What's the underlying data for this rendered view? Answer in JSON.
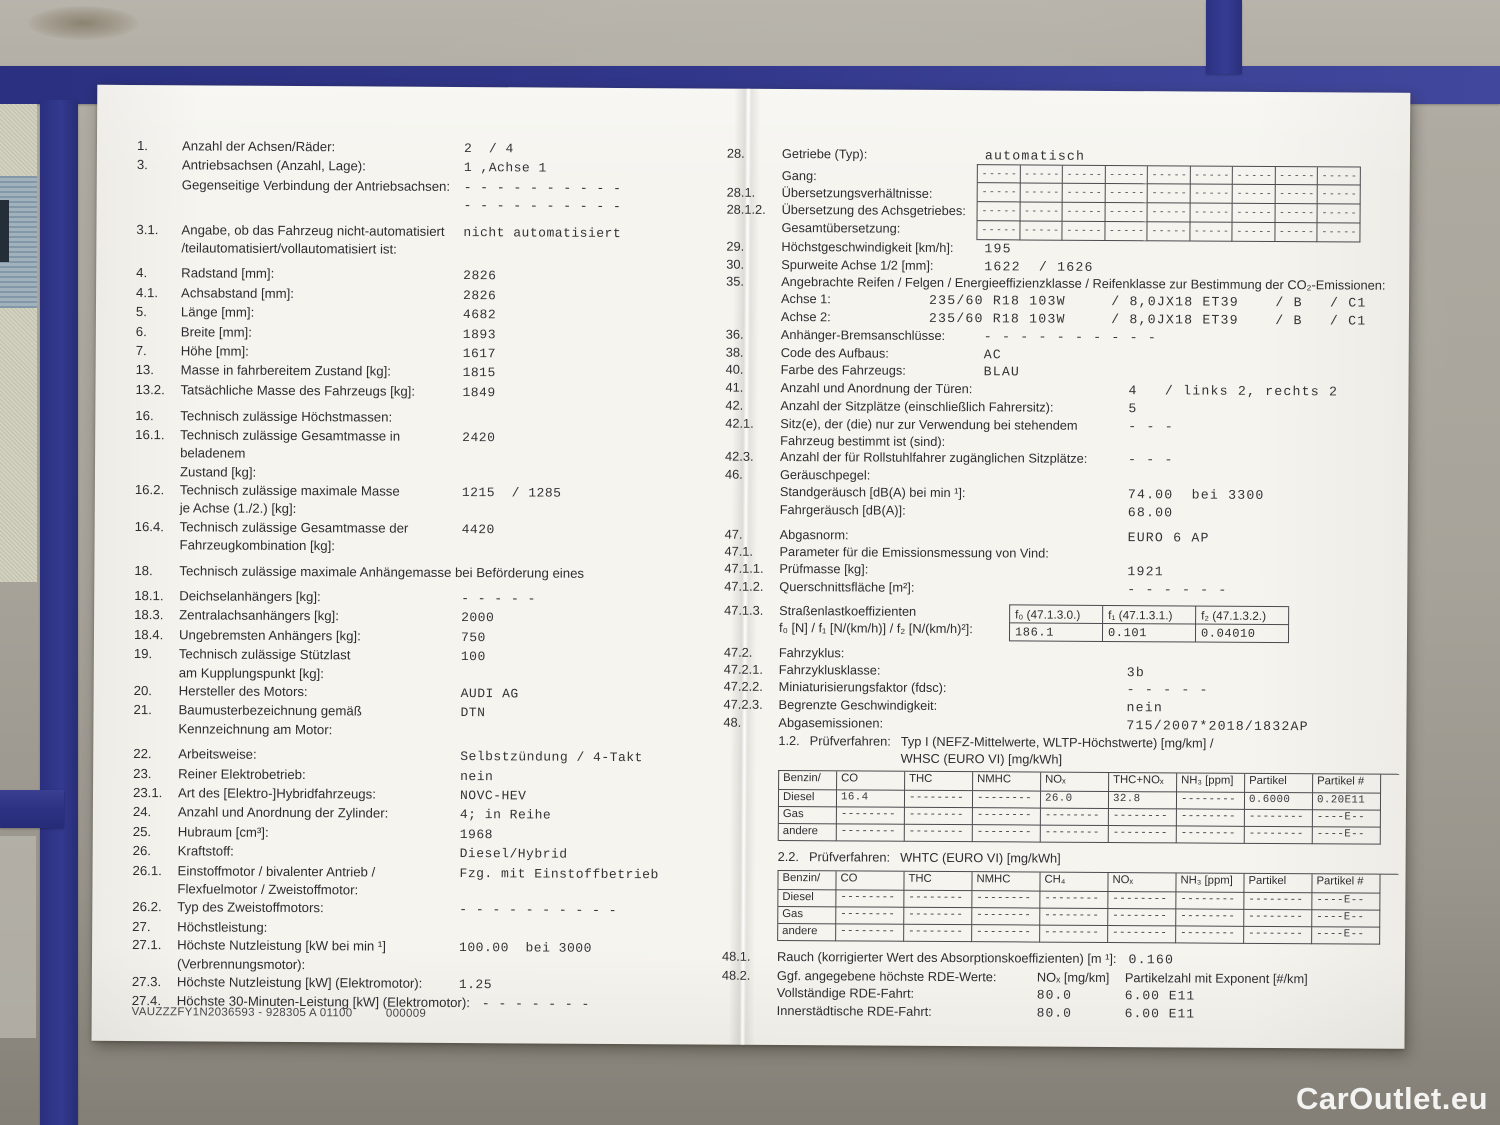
{
  "scene": {
    "watermark": "CarOutlet.eu",
    "colors": {
      "tape_blue": "#31368a",
      "paper": "#f5f4ef",
      "surface": "#a7a39a"
    }
  },
  "left_page": {
    "rows": [
      {
        "num": "1.",
        "label": "Anzahl der Achsen/Räder:",
        "value": "2  / 4"
      },
      {
        "num": "3.",
        "label": "Antriebsachsen (Anzahl, Lage):",
        "value": "1 ,Achse 1"
      },
      {
        "num": "",
        "label": "Gegenseitige Verbindung der Antriebsachsen:",
        "value": "- - - - - - - - - -\n- - - - - - - - - -"
      },
      {
        "num": "3.1.",
        "label": "Angabe, ob das Fahrzeug nicht-automatisiert\n/teilautomatisiert/vollautomatisiert ist:",
        "value": "nicht automatisiert",
        "cls": "gap"
      },
      {
        "num": "4.",
        "label": "Radstand [mm]:",
        "value": "2826",
        "cls": "gap"
      },
      {
        "num": "4.1.",
        "label": "Achsabstand [mm]:",
        "value": "2826"
      },
      {
        "num": "5.",
        "label": "Länge [mm]:",
        "value": "4682"
      },
      {
        "num": "6.",
        "label": "Breite [mm]:",
        "value": "1893"
      },
      {
        "num": "7.",
        "label": "Höhe [mm]:",
        "value": "1617"
      },
      {
        "num": "13.",
        "label": "Masse in fahrbereitem Zustand [kg]:",
        "value": "1815"
      },
      {
        "num": "13.2.",
        "label": "Tatsächliche Masse des Fahrzeugs [kg]:",
        "value": "1849"
      },
      {
        "num": "16.",
        "label": "Technisch zulässige Höchstmassen:",
        "value": "",
        "cls": "gap"
      },
      {
        "num": "16.1.",
        "label": "Technisch zulässige Gesamtmasse in beladenem\nZustand [kg]:",
        "value": "2420"
      },
      {
        "num": "16.2.",
        "label": "Technisch zulässige maximale Masse\nje Achse (1./2.) [kg]:",
        "value": "1215  / 1285"
      },
      {
        "num": "16.4.",
        "label": "Technisch zulässige Gesamtmasse der\nFahrzeugkombination [kg]:",
        "value": "4420"
      },
      {
        "num": "18.",
        "label": "Technisch zulässige maximale Anhängemasse bei Beförderung eines",
        "value": "",
        "cls": "long gap"
      },
      {
        "num": "18.1.",
        "label": "Deichselanhängers [kg]:",
        "value": "- - - - -",
        "cls": "gap"
      },
      {
        "num": "18.3.",
        "label": "Zentralachsanhängers [kg]:",
        "value": "2000"
      },
      {
        "num": "18.4.",
        "label": "Ungebremsten Anhängers [kg]:",
        "value": "750"
      },
      {
        "num": "19.",
        "label": "Technisch zulässige Stützlast\nam Kupplungspunkt [kg]:",
        "value": "100"
      },
      {
        "num": "20.",
        "label": "Hersteller des Motors:",
        "value": "AUDI AG"
      },
      {
        "num": "21.",
        "label": "Baumusterbezeichnung gemäß\nKennzeichnung am Motor:",
        "value": "DTN"
      },
      {
        "num": "22.",
        "label": "Arbeitsweise:",
        "value": "Selbstzündung / 4-Takt",
        "cls": "gap"
      },
      {
        "num": "23.",
        "label": "Reiner Elektrobetrieb:",
        "value": "nein"
      },
      {
        "num": "23.1.",
        "label": "Art des [Elektro-]Hybridfahrzeugs:",
        "value": "NOVC-HEV"
      },
      {
        "num": "24.",
        "label": "Anzahl und Anordnung der Zylinder:",
        "value": "4; in Reihe"
      },
      {
        "num": "25.",
        "label": "Hubraum [cm³]:",
        "value": "1968"
      },
      {
        "num": "26.",
        "label": "Kraftstoff:",
        "value": "Diesel/Hybrid"
      },
      {
        "num": "26.1.",
        "label": "Einstoffmotor / bivalenter Antrieb /\nFlexfuelmotor / Zweistoffmotor:",
        "value": "Fzg. mit Einstoffbetrieb"
      },
      {
        "num": "26.2.",
        "label": "Typ des Zweistoffmotors:",
        "value": "- - - - - - - - - -"
      },
      {
        "num": "27.",
        "label": "Höchstleistung:",
        "value": ""
      },
      {
        "num": "27.1.",
        "label": "Höchste Nutzleistung [kW bei min ¹]\n(Verbrennungsmotor):",
        "value": "100.00  bei 3000"
      },
      {
        "num": "27.3.",
        "label": "Höchste Nutzleistung [kW] (Elektromotor):",
        "value": "1.25"
      },
      {
        "num": "27.4.",
        "label": "Höchste 30-Minuten-Leistung [kW] (Elektromotor):",
        "value": "- - - - - - -",
        "cls": "long"
      }
    ],
    "footer": {
      "code": "VAUZZZFY1N2036593 - 928305 A 01100",
      "counter": "000009"
    }
  },
  "right_page": {
    "rows_top": [
      {
        "num": "28.",
        "label": "Getriebe (Typ):",
        "value": "automatisch"
      }
    ],
    "gear_block": {
      "labels": [
        {
          "num": "",
          "label": "Gang:",
          "value": ""
        },
        {
          "num": "28.1.",
          "label": "Übersetzungsverhältnisse:",
          "value": ""
        },
        {
          "num": "28.1.2.",
          "label": "Übersetzung des Achsgetriebes:",
          "value": ""
        },
        {
          "num": "",
          "label": "Gesamtübersetzung:",
          "value": ""
        }
      ],
      "table": {
        "rows": 4,
        "cols": 9,
        "cell": "-----"
      }
    },
    "rows_mid": [
      {
        "num": "29.",
        "label": "Höchstgeschwindigkeit [km/h]:",
        "value": "195"
      },
      {
        "num": "30.",
        "label": "Spurweite Achse 1/2 [mm]:",
        "value": "1622  / 1626"
      },
      {
        "num": "35.",
        "label": "Angebrachte Reifen / Felgen / Energieeffizienzklasse / Reifenklasse zur Bestimmung der CO₂-Emissionen:",
        "value": "",
        "cls": "long"
      },
      {
        "num": "",
        "label": "Achse 1:",
        "value": "235/60 R18 103W     / 8,0JX18 ET39    / B   / C1",
        "cls": "t"
      },
      {
        "num": "",
        "label": "Achse 2:",
        "value": "235/60 R18 103W     / 8,0JX18 ET39    / B   / C1",
        "cls": "t"
      },
      {
        "num": "36.",
        "label": "Anhänger-Bremsanschlüsse:",
        "value": "- - - - - - - - - -"
      },
      {
        "num": "38.",
        "label": "Code des Aufbaus:",
        "value": "AC"
      },
      {
        "num": "40.",
        "label": "Farbe des Fahrzeugs:",
        "value": "BLAU"
      },
      {
        "num": "41.",
        "label": "Anzahl und Anordnung der Türen:",
        "value": "4   / links 2, rechts 2",
        "cls": "w"
      },
      {
        "num": "42.",
        "label": "Anzahl der Sitzplätze (einschließlich Fahrersitz):",
        "value": "5",
        "cls": "w"
      },
      {
        "num": "42.1.",
        "label": "Sitz(e), der (die) nur zur Verwendung bei stehendem\nFahrzeug bestimmt ist (sind):",
        "value": "- - -",
        "cls": "w"
      },
      {
        "num": "42.3.",
        "label": "Anzahl der für Rollstuhlfahrer zugänglichen Sitzplätze:",
        "value": "- - -",
        "cls": "w"
      },
      {
        "num": "46.",
        "label": "Geräuschpegel:",
        "value": ""
      },
      {
        "num": "",
        "label": "Standgeräusch [dB(A) bei min ¹]:",
        "value": "74.00  bei 3300",
        "cls": "w"
      },
      {
        "num": "",
        "label": "Fahrgeräusch [dB(A)]:",
        "value": "68.00",
        "cls": "w"
      },
      {
        "num": "47.",
        "label": "Abgasnorm:",
        "value": "EURO 6 AP",
        "cls": "w gap"
      },
      {
        "num": "47.1.",
        "label": "Parameter für die Emissionsmessung von Vind:",
        "value": "",
        "cls": "long"
      },
      {
        "num": "47.1.1.",
        "label": "Prüfmasse [kg]:",
        "value": "1921",
        "cls": "w"
      },
      {
        "num": "47.1.2.",
        "label": "Querschnittsfläche [m²]:",
        "value": "- - - - - -",
        "cls": "w"
      }
    ],
    "road_load": {
      "num": "47.1.3.",
      "label": "Straßenlastkoeffizienten\nf₀ [N] / f₁ [N/(km/h)] / f₂ [N/(km/h)²]:",
      "headers": [
        "f₀ (47.1.3.0.)",
        "f₁ (47.1.3.1.)",
        "f₂ (47.1.3.2.)"
      ],
      "values": [
        "186.1",
        "0.101",
        "0.04010"
      ]
    },
    "rows_mid2": [
      {
        "num": "47.2.",
        "label": "Fahrzyklus:",
        "value": ""
      },
      {
        "num": "47.2.1.",
        "label": "Fahrzyklusklasse:",
        "value": "3b",
        "cls": "w"
      },
      {
        "num": "47.2.2.",
        "label": "Miniaturisierungsfaktor (fdsc):",
        "value": "- - - - -",
        "cls": "w"
      },
      {
        "num": "47.2.3.",
        "label": "Begrenzte Geschwindigkeit:",
        "value": "nein",
        "cls": "w"
      },
      {
        "num": "48.",
        "label": "Abgasemissionen:",
        "value": "715/2007*2018/1832AP",
        "cls": "w"
      }
    ],
    "test1": {
      "num": "1.2.",
      "name": "Prüfverfahren:",
      "desc": "Typ I (NEFZ-Mittelwerte, WLTP-Höchstwerte) [mg/km] /\nWHSC (EURO VI) [mg/kWh]"
    },
    "emis_table_1": {
      "corner": "Benzin/",
      "headers": [
        "CO",
        "THC",
        "NMHC",
        "NOₓ",
        "THC+NOₓ",
        "NH₃ [ppm]",
        "Partikel",
        "Partikel #"
      ],
      "rows": [
        [
          "Diesel",
          "16.4",
          "--------",
          "--------",
          "26.0",
          "32.8",
          "--------",
          "0.6000",
          "0.20E11"
        ],
        [
          "Gas",
          "--------",
          "--------",
          "--------",
          "--------",
          "--------",
          "--------",
          "--------",
          "----E--"
        ],
        [
          "andere",
          "--------",
          "--------",
          "--------",
          "--------",
          "--------",
          "--------",
          "--------",
          "----E--"
        ]
      ]
    },
    "test2": {
      "num": "2.2.",
      "name": "Prüfverfahren:",
      "desc": "WHTC (EURO VI) [mg/kWh]"
    },
    "emis_table_2": {
      "corner": "Benzin/",
      "headers": [
        "CO",
        "THC",
        "NMHC",
        "CH₄",
        "NOₓ",
        "NH₃ [ppm]",
        "Partikel",
        "Partikel #"
      ],
      "rows": [
        [
          "Diesel",
          "--------",
          "--------",
          "--------",
          "--------",
          "--------",
          "--------",
          "--------",
          "----E--"
        ],
        [
          "Gas",
          "--------",
          "--------",
          "--------",
          "--------",
          "--------",
          "--------",
          "--------",
          "----E--"
        ],
        [
          "andere",
          "--------",
          "--------",
          "--------",
          "--------",
          "--------",
          "--------",
          "--------",
          "----E--"
        ]
      ]
    },
    "rows_bottom": [
      {
        "num": "48.1.",
        "label": "Rauch (korrigierter Wert des Absorptionskoeffizienten) [m ¹]:",
        "value": "0.160",
        "cls": "long"
      }
    ],
    "rde": {
      "num": "48.2.",
      "header": [
        "Ggf. angegebene höchste RDE-Werte:",
        "NOₓ [mg/km]",
        "Partikelzahl mit Exponent [#/km]"
      ],
      "rows": [
        [
          "Vollständige RDE-Fahrt:",
          "80.0",
          "6.00 E11"
        ],
        [
          "Innerstädtische RDE-Fahrt:",
          "80.0",
          "6.00 E11"
        ]
      ]
    }
  }
}
